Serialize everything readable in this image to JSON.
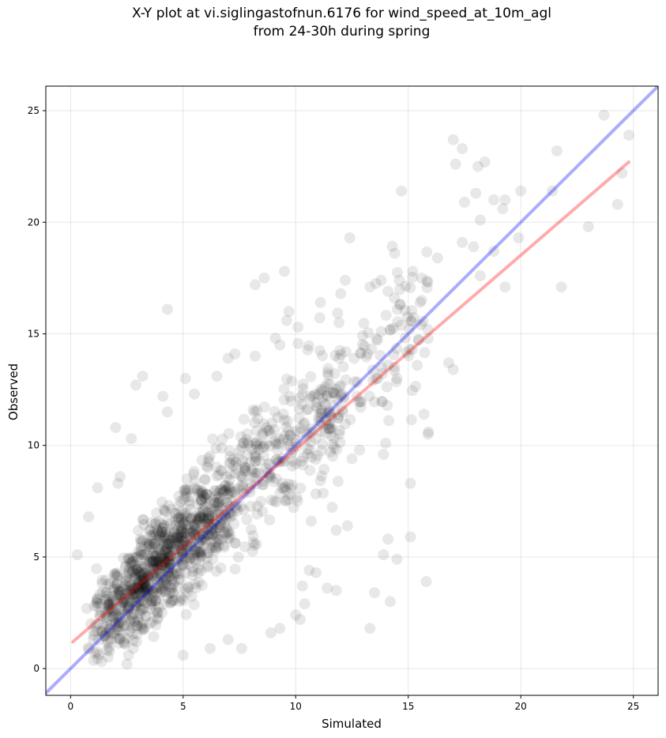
{
  "chart_data": {
    "type": "scatter",
    "title": "X-Y plot at vi.siglingastofnun.6176 for wind_speed_at_10m_agl\nfrom 24-30h during spring",
    "xlabel": "Simulated",
    "ylabel": "Observed",
    "xlim": [
      -1.1,
      26.1
    ],
    "ylim": [
      -1.2,
      26.1
    ],
    "xticks": [
      0,
      5,
      10,
      15,
      20,
      25
    ],
    "yticks": [
      0,
      5,
      10,
      15,
      20,
      25
    ],
    "grid": true,
    "point_color": "#000000",
    "point_alpha": 0.09,
    "series": [
      {
        "points": [
          [
            4.3,
            16.1
          ],
          [
            8.2,
            17.2
          ],
          [
            8.6,
            17.5
          ],
          [
            9.5,
            17.8
          ],
          [
            12.0,
            16.8
          ],
          [
            12.2,
            17.4
          ],
          [
            12.4,
            19.3
          ],
          [
            11.1,
            16.4
          ],
          [
            13.3,
            17.1
          ],
          [
            13.8,
            17.4
          ],
          [
            14.1,
            16.9
          ],
          [
            14.6,
            17.4
          ],
          [
            15.2,
            17.8
          ],
          [
            15.6,
            17.5
          ],
          [
            16.3,
            18.4
          ],
          [
            17.0,
            23.7
          ],
          [
            17.1,
            22.6
          ],
          [
            17.4,
            23.3
          ],
          [
            17.5,
            20.9
          ],
          [
            17.4,
            19.1
          ],
          [
            17.9,
            18.9
          ],
          [
            18.0,
            21.3
          ],
          [
            18.1,
            22.5
          ],
          [
            18.4,
            22.7
          ],
          [
            18.8,
            21.0
          ],
          [
            19.2,
            20.6
          ],
          [
            19.3,
            21.0
          ],
          [
            18.2,
            20.1
          ],
          [
            19.9,
            19.3
          ],
          [
            20.0,
            21.4
          ],
          [
            21.4,
            21.4
          ],
          [
            21.6,
            23.2
          ],
          [
            21.8,
            17.1
          ],
          [
            23.0,
            19.8
          ],
          [
            23.7,
            24.8
          ],
          [
            24.3,
            20.8
          ],
          [
            24.5,
            22.2
          ],
          [
            24.8,
            23.9
          ],
          [
            18.2,
            17.6
          ],
          [
            19.3,
            17.1
          ],
          [
            18.8,
            18.7
          ],
          [
            14.7,
            21.4
          ],
          [
            15.6,
            16.5
          ],
          [
            16.8,
            13.7
          ],
          [
            17.0,
            13.4
          ],
          [
            15.9,
            10.6
          ],
          [
            15.7,
            11.4
          ],
          [
            15.1,
            8.3
          ],
          [
            15.1,
            5.9
          ],
          [
            15.8,
            3.9
          ],
          [
            14.2,
            3.0
          ],
          [
            13.5,
            3.4
          ],
          [
            13.3,
            1.8
          ],
          [
            14.5,
            4.9
          ],
          [
            13.9,
            5.1
          ],
          [
            14.1,
            5.8
          ],
          [
            12.3,
            6.4
          ],
          [
            11.8,
            6.2
          ],
          [
            10.6,
            4.4
          ],
          [
            10.9,
            4.3
          ],
          [
            11.4,
            3.6
          ],
          [
            11.8,
            3.5
          ],
          [
            10.3,
            3.7
          ],
          [
            10.4,
            2.9
          ],
          [
            10.0,
            2.4
          ],
          [
            10.2,
            2.2
          ],
          [
            9.3,
            1.8
          ],
          [
            8.9,
            1.6
          ],
          [
            7.6,
            0.9
          ],
          [
            7.0,
            1.3
          ],
          [
            6.2,
            0.9
          ],
          [
            5.0,
            0.6
          ],
          [
            2.5,
            0.2
          ],
          [
            0.8,
            6.8
          ],
          [
            0.3,
            5.1
          ],
          [
            1.2,
            8.1
          ],
          [
            2.0,
            10.8
          ],
          [
            2.1,
            8.3
          ],
          [
            2.2,
            8.6
          ],
          [
            2.7,
            10.3
          ],
          [
            2.9,
            12.7
          ],
          [
            3.2,
            13.1
          ],
          [
            4.1,
            12.2
          ],
          [
            4.3,
            11.5
          ],
          [
            5.1,
            13.0
          ],
          [
            5.5,
            12.3
          ],
          [
            6.5,
            13.1
          ],
          [
            7.0,
            13.9
          ],
          [
            7.3,
            14.1
          ],
          [
            8.2,
            14.0
          ],
          [
            9.1,
            14.8
          ],
          [
            9.3,
            14.5
          ],
          [
            9.6,
            15.6
          ],
          [
            9.7,
            16.0
          ],
          [
            10.1,
            15.3
          ],
          [
            12.1,
            11.5
          ],
          [
            12.6,
            13.9
          ],
          [
            13.2,
            14.1
          ],
          [
            13.8,
            15.1
          ],
          [
            14.1,
            13.6
          ],
          [
            14.5,
            13.0
          ],
          [
            13.9,
            9.6
          ],
          [
            14.0,
            10.1
          ],
          [
            12.5,
            9.4
          ]
        ]
      }
    ],
    "fit_lines": [
      {
        "name": "identity",
        "color": "#0000ff",
        "alpha": 0.33,
        "x": [
          -1.1,
          26.1
        ],
        "y": [
          -1.1,
          26.1
        ]
      },
      {
        "name": "regression",
        "color": "#ff0000",
        "alpha": 0.33,
        "x": [
          0.1,
          24.8
        ],
        "y": [
          1.2,
          22.7
        ]
      }
    ]
  }
}
